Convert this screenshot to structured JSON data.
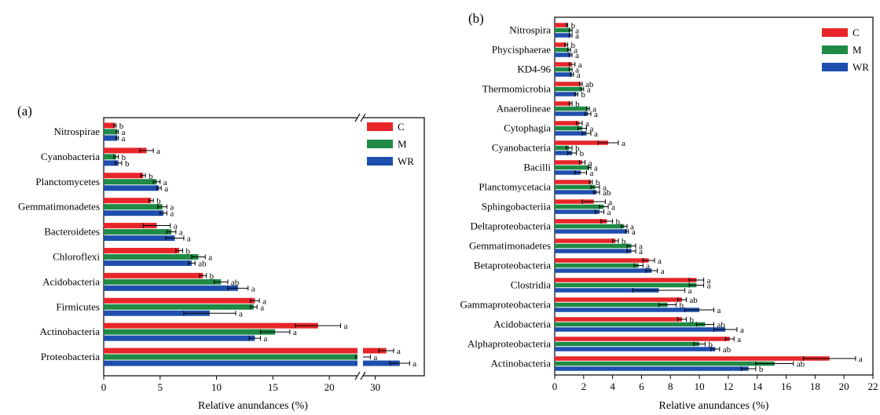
{
  "panels": [
    {
      "panel_label": "(a)",
      "xlabel": "Relative anundances (%)",
      "legend": [
        "C",
        "M",
        "WR"
      ],
      "colors": {
        "C": "#e8262a",
        "M": "#1e8a45",
        "WR": "#1f4fae"
      },
      "left_ticks": [
        "0",
        "5",
        "10",
        "15",
        "20"
      ],
      "right_ticks": [
        "30"
      ]
    },
    {
      "panel_label": "(b)",
      "xlabel": "Relative anundances (%)",
      "legend": [
        "C",
        "M",
        "WR"
      ],
      "colors": {
        "C": "#e8262a",
        "M": "#1e8a45",
        "WR": "#1f4fae"
      },
      "ticks": [
        "0",
        "2",
        "4",
        "6",
        "8",
        "10",
        "12",
        "14",
        "16",
        "18",
        "20",
        "22"
      ]
    }
  ],
  "chart_data": [
    {
      "type": "bar",
      "orientation": "horizontal",
      "title": "(a)",
      "xlabel": "Relative anundances (%)",
      "xlim": [
        0,
        34
      ],
      "axis_break": [
        22.5,
        29
      ],
      "categories": [
        "Nitrospirae",
        "Cyanobacteria",
        "Planctomycetes",
        "Gemmatimonadetes",
        "Bacteroidetes",
        "Chloroflexi",
        "Acidobacteria",
        "Firmicutes",
        "Actinobacteria",
        "Proteobacteria"
      ],
      "series": [
        {
          "name": "C",
          "values": [
            1.0,
            3.8,
            3.5,
            4.2,
            4.7,
            6.7,
            8.8,
            13.4,
            19.0,
            30.9
          ],
          "errors": [
            0.1,
            0.6,
            0.2,
            0.2,
            1.2,
            0.3,
            0.3,
            0.4,
            2.0,
            0.6
          ],
          "labels": [
            "b",
            "a",
            "b",
            "b",
            "a",
            "b",
            "b",
            "a",
            "a",
            "a"
          ]
        },
        {
          "name": "M",
          "values": [
            1.2,
            1.1,
            4.7,
            5.2,
            6.0,
            8.4,
            10.4,
            13.3,
            15.2,
            29.0
          ],
          "errors": [
            0.1,
            0.2,
            0.3,
            0.4,
            0.4,
            0.6,
            0.6,
            0.3,
            1.3,
            0.6
          ],
          "labels": [
            "a",
            "b",
            "a",
            "a",
            "a",
            "a",
            "ab",
            "a",
            "a",
            "a"
          ]
        },
        {
          "name": "WR",
          "values": [
            1.2,
            1.3,
            4.9,
            5.3,
            6.3,
            7.8,
            11.9,
            9.4,
            13.4,
            32.0
          ],
          "errors": [
            0.1,
            0.3,
            0.2,
            0.3,
            0.8,
            0.3,
            0.9,
            2.3,
            0.5,
            0.8
          ],
          "labels": [
            "a",
            "b",
            "a",
            "a",
            "a",
            "ab",
            "a",
            "a",
            "a",
            "a"
          ]
        }
      ]
    },
    {
      "type": "bar",
      "orientation": "horizontal",
      "title": "(b)",
      "xlabel": "Relative anundances (%)",
      "xlim": [
        0,
        22
      ],
      "categories": [
        "Nitrospira",
        "Phycisphaerae",
        "KD4-96",
        "Thermomicrobia",
        "Anaerolineae",
        "Cytophagia",
        "Cyanobacteria",
        "Bacilli",
        "Planctomycetacia",
        "Sphingobacteriia",
        "Deltaproteobacteria",
        "Gemmatimonadetes",
        "Betaproteobacteria",
        "Clostridia",
        "Gammaproteobacteria",
        "Acidobacteria",
        "Alphaproteobacteria",
        "Actinobacteria"
      ],
      "series": [
        {
          "name": "C",
          "values": [
            0.85,
            0.8,
            1.2,
            1.8,
            1.1,
            1.7,
            3.7,
            1.9,
            2.5,
            2.7,
            3.6,
            4.2,
            6.5,
            9.8,
            8.8,
            8.8,
            12.1,
            19.0
          ],
          "errors": [
            0.05,
            0.1,
            0.2,
            0.1,
            0.1,
            0.2,
            0.7,
            0.2,
            0.1,
            0.8,
            0.4,
            0.2,
            0.4,
            0.5,
            0.3,
            0.3,
            0.3,
            1.8
          ],
          "labels": [
            "b",
            "b",
            "a",
            "ab",
            "b",
            "a",
            "a",
            "a",
            "b",
            "a",
            "b",
            "b",
            "a",
            "a",
            "ab",
            "b",
            "a",
            "a"
          ]
        },
        {
          "name": "M",
          "values": [
            1.1,
            1.0,
            1.1,
            1.9,
            2.3,
            1.9,
            1.0,
            2.4,
            2.8,
            3.4,
            4.8,
            5.3,
            5.8,
            9.8,
            7.8,
            10.4,
            10.0,
            15.2
          ],
          "errors": [
            0.1,
            0.1,
            0.1,
            0.1,
            0.1,
            0.3,
            0.2,
            0.1,
            0.3,
            0.3,
            0.2,
            0.3,
            0.3,
            0.5,
            0.6,
            0.6,
            0.4,
            1.3
          ],
          "labels": [
            "a",
            "a",
            "a",
            "a",
            "a",
            "a",
            "b",
            "a",
            "a",
            "a",
            "a",
            "a",
            "a",
            "a",
            "b",
            "ab",
            "b",
            "ab"
          ]
        },
        {
          "name": "WR",
          "values": [
            1.1,
            1.1,
            1.2,
            1.5,
            2.3,
            2.2,
            1.2,
            1.8,
            2.9,
            3.1,
            5.0,
            5.3,
            6.7,
            7.2,
            10.0,
            11.8,
            11.1,
            13.4
          ],
          "errors": [
            0.1,
            0.1,
            0.1,
            0.1,
            0.2,
            0.3,
            0.3,
            0.4,
            0.2,
            0.3,
            0.1,
            0.3,
            0.4,
            1.8,
            1.0,
            0.8,
            0.3,
            0.5
          ],
          "labels": [
            "a",
            "a",
            "a",
            "b",
            "a",
            "a",
            "b",
            "a",
            "ab",
            "a",
            "a",
            "a",
            "a",
            "a",
            "a",
            "a",
            "ab",
            "b"
          ]
        }
      ]
    }
  ]
}
